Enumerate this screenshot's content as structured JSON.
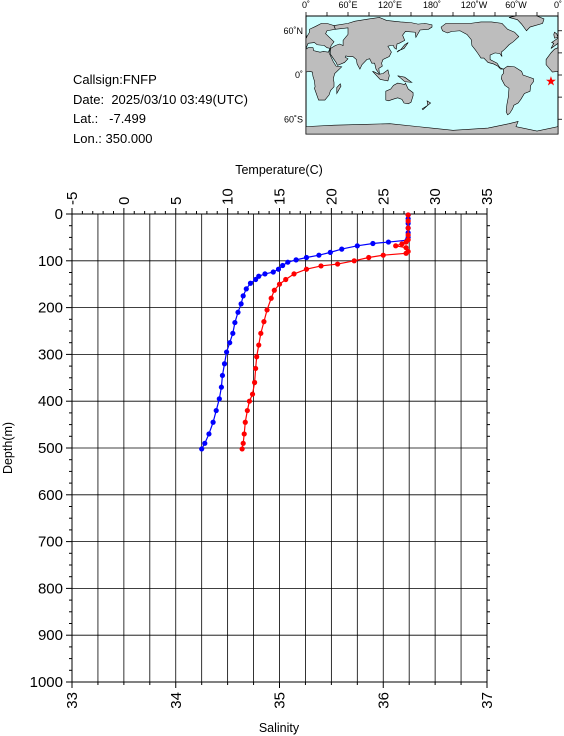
{
  "station": {
    "callsign": "Callsign:FNFP",
    "date_label": "Date:",
    "date_value": "2025/03/10 03:49(UTC)",
    "lat_label": "Lat.:",
    "lat_value": "-7.499",
    "lon_label": "Lon.:",
    "lon_value": "350.000"
  },
  "map": {
    "top_labels": [
      "0˚",
      "60˚E",
      "120˚E",
      "180˚",
      "120˚W",
      "60˚W",
      "0˚"
    ],
    "lat_labels": [
      "60˚N",
      "0˚",
      "60˚S"
    ],
    "ocean_color": "#ccffff",
    "land_color": "#bdbdbd",
    "marker_color": "#ff0000",
    "station_lon": 350.0,
    "station_lat": -7.499
  },
  "chart_data": {
    "type": "line",
    "title": "",
    "y": {
      "label": "Depth(m)",
      "range": [
        0,
        1000
      ],
      "inverted": true,
      "ticks": [
        "0",
        "100",
        "200",
        "300",
        "400",
        "500",
        "600",
        "700",
        "800",
        "900",
        "1000"
      ]
    },
    "x_top": {
      "label": "Temperature(C)",
      "range": [
        -5,
        35
      ],
      "ticks": [
        "-5",
        "0",
        "5",
        "10",
        "15",
        "20",
        "25",
        "30",
        "35"
      ]
    },
    "x_bottom": {
      "label": "Salinity",
      "range": [
        33,
        37
      ],
      "ticks": [
        "33",
        "34",
        "35",
        "36",
        "37"
      ]
    },
    "grid": true,
    "series": [
      {
        "variable": "temperature",
        "axis": "top",
        "color": "#0000ff",
        "points": [
          [
            27.4,
            2
          ],
          [
            27.4,
            10
          ],
          [
            27.4,
            20
          ],
          [
            27.4,
            30
          ],
          [
            27.4,
            40
          ],
          [
            27.4,
            50
          ],
          [
            27.3,
            56
          ],
          [
            25.5,
            60
          ],
          [
            24.0,
            63
          ],
          [
            22.5,
            68
          ],
          [
            21.0,
            75
          ],
          [
            19.9,
            82
          ],
          [
            18.8,
            88
          ],
          [
            17.6,
            93
          ],
          [
            16.6,
            98
          ],
          [
            15.8,
            103
          ],
          [
            15.3,
            110
          ],
          [
            14.9,
            118
          ],
          [
            14.4,
            124
          ],
          [
            13.6,
            128
          ],
          [
            13.0,
            133
          ],
          [
            12.7,
            140
          ],
          [
            12.2,
            148
          ],
          [
            11.8,
            160
          ],
          [
            11.5,
            175
          ],
          [
            11.3,
            192
          ],
          [
            11.0,
            210
          ],
          [
            10.7,
            232
          ],
          [
            10.5,
            255
          ],
          [
            10.2,
            275
          ],
          [
            9.9,
            295
          ],
          [
            9.7,
            320
          ],
          [
            9.5,
            345
          ],
          [
            9.4,
            370
          ],
          [
            9.2,
            395
          ],
          [
            8.9,
            420
          ],
          [
            8.6,
            445
          ],
          [
            8.2,
            470
          ],
          [
            7.8,
            490
          ],
          [
            7.5,
            502
          ]
        ]
      },
      {
        "variable": "salinity",
        "axis": "bottom",
        "color": "#ff0000",
        "points": [
          [
            36.24,
            2
          ],
          [
            36.24,
            15
          ],
          [
            36.24,
            30
          ],
          [
            36.24,
            45
          ],
          [
            36.24,
            55
          ],
          [
            36.22,
            60
          ],
          [
            36.18,
            64
          ],
          [
            36.12,
            68
          ],
          [
            36.22,
            72
          ],
          [
            36.24,
            80
          ],
          [
            36.22,
            84
          ],
          [
            36.0,
            88
          ],
          [
            35.86,
            93
          ],
          [
            35.72,
            100
          ],
          [
            35.56,
            107
          ],
          [
            35.4,
            111
          ],
          [
            35.26,
            118
          ],
          [
            35.14,
            128
          ],
          [
            35.06,
            140
          ],
          [
            35.0,
            150
          ],
          [
            34.95,
            163
          ],
          [
            34.92,
            180
          ],
          [
            34.88,
            205
          ],
          [
            34.85,
            230
          ],
          [
            34.82,
            255
          ],
          [
            34.8,
            280
          ],
          [
            34.78,
            305
          ],
          [
            34.77,
            330
          ],
          [
            34.76,
            360
          ],
          [
            34.74,
            385
          ],
          [
            34.71,
            400
          ],
          [
            34.69,
            420
          ],
          [
            34.67,
            445
          ],
          [
            34.66,
            470
          ],
          [
            34.65,
            490
          ],
          [
            34.64,
            502
          ]
        ]
      }
    ]
  }
}
